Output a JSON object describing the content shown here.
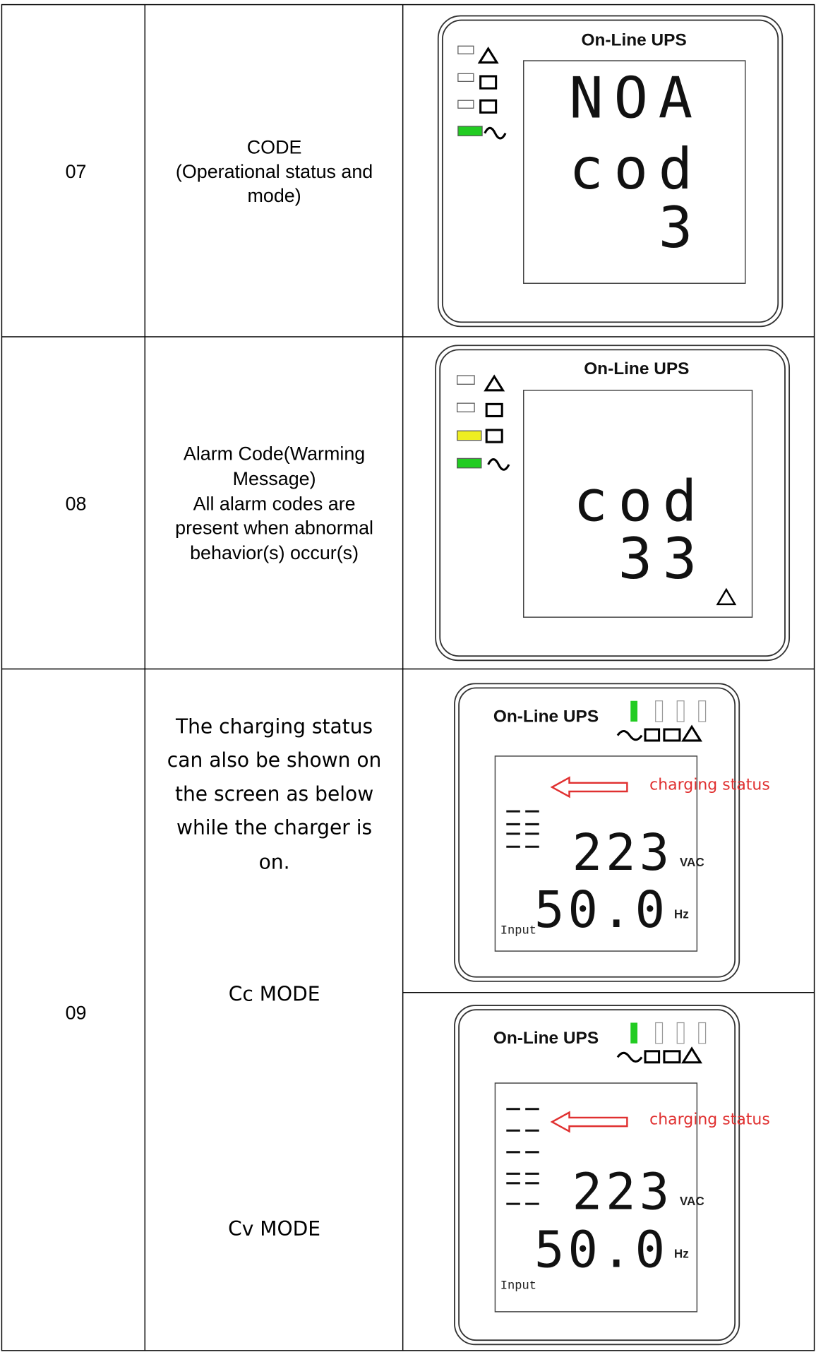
{
  "table": {
    "rows": [
      {
        "number": "07",
        "description": [
          "CODE",
          "(Operational status and",
          "mode)"
        ],
        "display": {
          "title": "On-Line UPS",
          "lines": [
            "NOA",
            "cod",
            "3"
          ]
        }
      },
      {
        "number": "08",
        "description": [
          "Alarm Code(Warming",
          "Message)",
          "All alarm codes are",
          "present when abnormal",
          "behavior(s) occur(s)"
        ],
        "display": {
          "title": "On-Line UPS",
          "lines": [
            "cod",
            "33"
          ]
        }
      },
      {
        "number": "09",
        "description": [
          "The charging status",
          "can also be shown on",
          "the screen as below",
          "while the charger is",
          "on."
        ],
        "modes": [
          {
            "name": "Cc MODE",
            "display": {
              "title": "On-Line UPS",
              "annotation": "charging status",
              "voltage": "223",
              "voltage_unit": "VAC",
              "frequency": "50.0",
              "frequency_unit": "Hz",
              "label": "Input"
            }
          },
          {
            "name": "Cv MODE",
            "display": {
              "title": "On-Line UPS",
              "annotation": "charging status",
              "voltage": "223",
              "voltage_unit": "VAC",
              "frequency": "50.0",
              "frequency_unit": "Hz",
              "label": "Input"
            }
          }
        ]
      }
    ]
  }
}
